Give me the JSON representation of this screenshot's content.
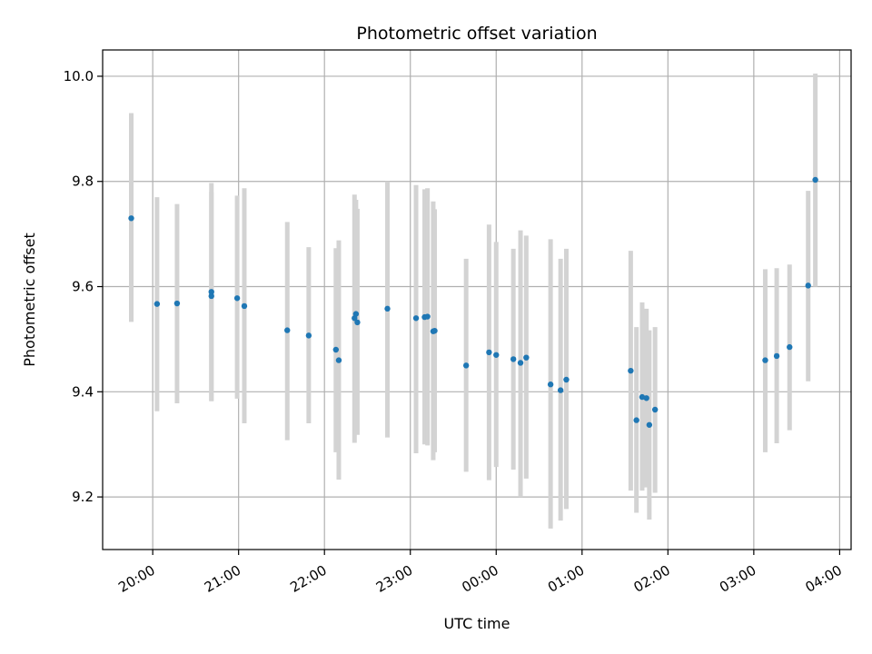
{
  "chart_data": {
    "type": "scatter",
    "title": "Photometric offset variation",
    "xlabel": "UTC time",
    "ylabel": "Photometric offset",
    "x_ticks": [
      "20:00",
      "21:00",
      "22:00",
      "23:00",
      "00:00",
      "01:00",
      "02:00",
      "03:00",
      "04:00"
    ],
    "y_ticks": [
      "9.2",
      "9.4",
      "9.6",
      "9.8",
      "10.0"
    ],
    "y_tick_values": [
      9.2,
      9.4,
      9.6,
      9.8,
      10.0
    ],
    "ylim": [
      9.1,
      10.05
    ],
    "xlim": [
      "19:25",
      "04:08"
    ],
    "grid": true,
    "point_color": "#1f77b4",
    "errorbar_color": "#d3d3d3",
    "points": [
      {
        "x": "19:45",
        "y": 9.73,
        "low": 9.533,
        "high": 9.93
      },
      {
        "x": "20:03",
        "y": 9.567,
        "low": 9.363,
        "high": 9.77
      },
      {
        "x": "20:17",
        "y": 9.568,
        "low": 9.378,
        "high": 9.757
      },
      {
        "x": "20:41",
        "y": 9.59,
        "low": 9.382,
        "high": 9.797
      },
      {
        "x": "20:41",
        "y": 9.582,
        "low": 9.383,
        "high": 9.78
      },
      {
        "x": "20:59",
        "y": 9.578,
        "low": 9.387,
        "high": 9.773
      },
      {
        "x": "21:04",
        "y": 9.563,
        "low": 9.34,
        "high": 9.787
      },
      {
        "x": "21:34",
        "y": 9.517,
        "low": 9.308,
        "high": 9.723
      },
      {
        "x": "21:49",
        "y": 9.507,
        "low": 9.34,
        "high": 9.675
      },
      {
        "x": "22:08",
        "y": 9.48,
        "low": 9.285,
        "high": 9.673
      },
      {
        "x": "22:10",
        "y": 9.46,
        "low": 9.233,
        "high": 9.688
      },
      {
        "x": "22:21",
        "y": 9.54,
        "low": 9.303,
        "high": 9.775
      },
      {
        "x": "22:22",
        "y": 9.548,
        "low": 9.32,
        "high": 9.765
      },
      {
        "x": "22:23",
        "y": 9.532,
        "low": 9.318,
        "high": 9.748
      },
      {
        "x": "22:44",
        "y": 9.558,
        "low": 9.313,
        "high": 9.8
      },
      {
        "x": "23:04",
        "y": 9.54,
        "low": 9.283,
        "high": 9.793
      },
      {
        "x": "23:10",
        "y": 9.542,
        "low": 9.3,
        "high": 9.785
      },
      {
        "x": "23:12",
        "y": 9.543,
        "low": 9.298,
        "high": 9.787
      },
      {
        "x": "23:16",
        "y": 9.515,
        "low": 9.27,
        "high": 9.762
      },
      {
        "x": "23:17",
        "y": 9.516,
        "low": 9.285,
        "high": 9.747
      },
      {
        "x": "23:39",
        "y": 9.45,
        "low": 9.248,
        "high": 9.653
      },
      {
        "x": "23:55",
        "y": 9.475,
        "low": 9.232,
        "high": 9.718
      },
      {
        "x": "00:00",
        "y": 9.47,
        "low": 9.257,
        "high": 9.685
      },
      {
        "x": "00:12",
        "y": 9.462,
        "low": 9.252,
        "high": 9.672
      },
      {
        "x": "00:17",
        "y": 9.455,
        "low": 9.2,
        "high": 9.707
      },
      {
        "x": "00:21",
        "y": 9.465,
        "low": 9.235,
        "high": 9.697
      },
      {
        "x": "00:38",
        "y": 9.414,
        "low": 9.14,
        "high": 9.69
      },
      {
        "x": "00:45",
        "y": 9.403,
        "low": 9.155,
        "high": 9.653
      },
      {
        "x": "00:49",
        "y": 9.423,
        "low": 9.177,
        "high": 9.672
      },
      {
        "x": "01:34",
        "y": 9.44,
        "low": 9.212,
        "high": 9.668
      },
      {
        "x": "01:38",
        "y": 9.346,
        "low": 9.17,
        "high": 9.523
      },
      {
        "x": "01:42",
        "y": 9.39,
        "low": 9.212,
        "high": 9.57
      },
      {
        "x": "01:45",
        "y": 9.388,
        "low": 9.218,
        "high": 9.558
      },
      {
        "x": "01:47",
        "y": 9.337,
        "low": 9.157,
        "high": 9.517
      },
      {
        "x": "01:51",
        "y": 9.366,
        "low": 9.208,
        "high": 9.523
      },
      {
        "x": "03:08",
        "y": 9.46,
        "low": 9.285,
        "high": 9.633
      },
      {
        "x": "03:16",
        "y": 9.468,
        "low": 9.302,
        "high": 9.635
      },
      {
        "x": "03:25",
        "y": 9.485,
        "low": 9.327,
        "high": 9.642
      },
      {
        "x": "03:38",
        "y": 9.602,
        "low": 9.42,
        "high": 9.782
      },
      {
        "x": "03:43",
        "y": 9.803,
        "low": 9.6,
        "high": 10.005
      }
    ]
  }
}
